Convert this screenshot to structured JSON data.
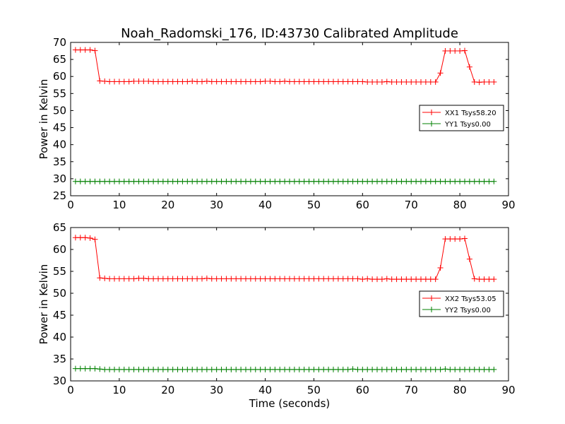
{
  "title": "Noah_Radomski_176, ID:43730 Calibrated Amplitude",
  "chart_data": [
    {
      "type": "line",
      "xlabel": "",
      "ylabel": "Power in Kelvin",
      "xlim": [
        0,
        90
      ],
      "ylim": [
        25,
        70
      ],
      "xticks": [
        0,
        10,
        20,
        30,
        40,
        50,
        60,
        70,
        80,
        90
      ],
      "yticks": [
        25,
        30,
        35,
        40,
        45,
        50,
        55,
        60,
        65,
        70
      ],
      "legend_position": "right",
      "series": [
        {
          "name": "XX1 Tsys58.20",
          "color": "#ff0000",
          "x": [
            1,
            2,
            3,
            4,
            5,
            6,
            7,
            8,
            9,
            10,
            11,
            12,
            13,
            14,
            15,
            16,
            17,
            18,
            19,
            20,
            21,
            22,
            23,
            24,
            25,
            26,
            27,
            28,
            29,
            30,
            31,
            32,
            33,
            34,
            35,
            36,
            37,
            38,
            39,
            40,
            41,
            42,
            43,
            44,
            45,
            46,
            47,
            48,
            49,
            50,
            51,
            52,
            53,
            54,
            55,
            56,
            57,
            58,
            59,
            60,
            61,
            62,
            63,
            64,
            65,
            66,
            67,
            68,
            69,
            70,
            71,
            72,
            73,
            74,
            75,
            76,
            77,
            78,
            79,
            80,
            81,
            82,
            83,
            84,
            85,
            86,
            87
          ],
          "y": [
            67.8,
            67.8,
            67.8,
            67.8,
            67.6,
            58.7,
            58.6,
            58.5,
            58.5,
            58.5,
            58.5,
            58.5,
            58.6,
            58.6,
            58.6,
            58.6,
            58.5,
            58.5,
            58.5,
            58.5,
            58.5,
            58.5,
            58.5,
            58.5,
            58.6,
            58.5,
            58.5,
            58.6,
            58.5,
            58.5,
            58.5,
            58.5,
            58.5,
            58.5,
            58.5,
            58.5,
            58.5,
            58.5,
            58.5,
            58.6,
            58.6,
            58.5,
            58.5,
            58.6,
            58.5,
            58.5,
            58.5,
            58.5,
            58.5,
            58.5,
            58.5,
            58.5,
            58.5,
            58.5,
            58.5,
            58.5,
            58.5,
            58.5,
            58.5,
            58.5,
            58.4,
            58.4,
            58.4,
            58.4,
            58.5,
            58.4,
            58.4,
            58.4,
            58.4,
            58.4,
            58.4,
            58.4,
            58.4,
            58.4,
            58.4,
            61.0,
            67.5,
            67.5,
            67.5,
            67.5,
            67.6,
            62.8,
            58.4,
            58.3,
            58.4,
            58.4,
            58.4
          ]
        },
        {
          "name": "YY1 Tsys0.00",
          "color": "#008000",
          "x": [
            1,
            87
          ],
          "y": [
            29.2,
            29.2
          ],
          "markers_every": 1
        }
      ]
    },
    {
      "type": "line",
      "xlabel": "Time (seconds)",
      "ylabel": "Power in Kelvin",
      "xlim": [
        0,
        90
      ],
      "ylim": [
        30,
        65
      ],
      "xticks": [
        0,
        10,
        20,
        30,
        40,
        50,
        60,
        70,
        80,
        90
      ],
      "yticks": [
        30,
        35,
        40,
        45,
        50,
        55,
        60,
        65
      ],
      "legend_position": "right",
      "series": [
        {
          "name": "XX2 Tsys53.05",
          "color": "#ff0000",
          "x": [
            1,
            2,
            3,
            4,
            5,
            6,
            7,
            8,
            9,
            10,
            11,
            12,
            13,
            14,
            15,
            16,
            17,
            18,
            19,
            20,
            21,
            22,
            23,
            24,
            25,
            26,
            27,
            28,
            29,
            30,
            31,
            32,
            33,
            34,
            35,
            36,
            37,
            38,
            39,
            40,
            41,
            42,
            43,
            44,
            45,
            46,
            47,
            48,
            49,
            50,
            51,
            52,
            53,
            54,
            55,
            56,
            57,
            58,
            59,
            60,
            61,
            62,
            63,
            64,
            65,
            66,
            67,
            68,
            69,
            70,
            71,
            72,
            73,
            74,
            75,
            76,
            77,
            78,
            79,
            80,
            81,
            82,
            83,
            84,
            85,
            86,
            87
          ],
          "y": [
            62.7,
            62.7,
            62.7,
            62.6,
            62.3,
            53.5,
            53.4,
            53.3,
            53.3,
            53.3,
            53.3,
            53.3,
            53.3,
            53.4,
            53.4,
            53.3,
            53.3,
            53.3,
            53.3,
            53.3,
            53.3,
            53.3,
            53.3,
            53.3,
            53.3,
            53.3,
            53.3,
            53.4,
            53.3,
            53.3,
            53.3,
            53.3,
            53.3,
            53.3,
            53.3,
            53.3,
            53.3,
            53.3,
            53.3,
            53.3,
            53.3,
            53.3,
            53.3,
            53.3,
            53.3,
            53.3,
            53.3,
            53.3,
            53.3,
            53.3,
            53.3,
            53.3,
            53.3,
            53.3,
            53.3,
            53.3,
            53.3,
            53.3,
            53.3,
            53.2,
            53.3,
            53.2,
            53.2,
            53.2,
            53.3,
            53.2,
            53.2,
            53.2,
            53.2,
            53.2,
            53.2,
            53.2,
            53.2,
            53.2,
            53.2,
            55.8,
            62.4,
            62.4,
            62.4,
            62.4,
            62.5,
            57.8,
            53.3,
            53.2,
            53.2,
            53.2,
            53.2
          ]
        },
        {
          "name": "YY2 Tsys0.00",
          "color": "#008000",
          "x": [
            1,
            2,
            3,
            4,
            5,
            6,
            7,
            8,
            9,
            10,
            11,
            12,
            13,
            14,
            15,
            16,
            17,
            18,
            19,
            20,
            21,
            22,
            23,
            24,
            25,
            26,
            27,
            28,
            29,
            30,
            31,
            32,
            33,
            34,
            35,
            36,
            37,
            38,
            39,
            40,
            41,
            42,
            43,
            44,
            45,
            46,
            47,
            48,
            49,
            50,
            51,
            52,
            53,
            54,
            55,
            56,
            57,
            58,
            59,
            60,
            61,
            62,
            63,
            64,
            65,
            66,
            67,
            68,
            69,
            70,
            71,
            72,
            73,
            74,
            75,
            76,
            77,
            78,
            79,
            80,
            81,
            82,
            83,
            84,
            85,
            86,
            87
          ],
          "y": [
            32.8,
            32.8,
            32.8,
            32.8,
            32.8,
            32.7,
            32.6,
            32.6,
            32.6,
            32.6,
            32.6,
            32.6,
            32.6,
            32.6,
            32.6,
            32.6,
            32.6,
            32.6,
            32.6,
            32.6,
            32.6,
            32.6,
            32.6,
            32.6,
            32.6,
            32.6,
            32.6,
            32.6,
            32.6,
            32.6,
            32.6,
            32.6,
            32.6,
            32.6,
            32.6,
            32.6,
            32.6,
            32.6,
            32.6,
            32.6,
            32.6,
            32.6,
            32.6,
            32.6,
            32.6,
            32.6,
            32.6,
            32.6,
            32.6,
            32.6,
            32.6,
            32.6,
            32.6,
            32.6,
            32.6,
            32.6,
            32.6,
            32.7,
            32.6,
            32.6,
            32.6,
            32.6,
            32.6,
            32.6,
            32.6,
            32.6,
            32.6,
            32.6,
            32.6,
            32.6,
            32.6,
            32.6,
            32.6,
            32.6,
            32.6,
            32.6,
            32.7,
            32.6,
            32.6,
            32.6,
            32.6,
            32.6,
            32.6,
            32.6,
            32.6,
            32.6,
            32.6
          ]
        }
      ]
    }
  ]
}
